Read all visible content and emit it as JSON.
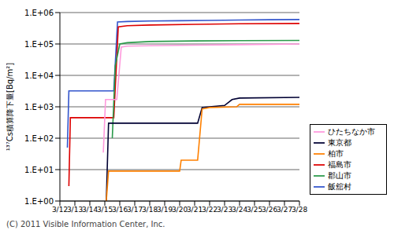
{
  "chart_data": {
    "type": "line",
    "y_label": "¹³⁷Cs積算降下量[Bq/m²]",
    "annotation": "(C) 2011 Visible Information Center, Inc.",
    "log": "y",
    "grid": true,
    "legend": "right",
    "xlim": [
      12,
      28
    ],
    "xticks": [
      {
        "value": 12,
        "label": "3/12"
      },
      {
        "value": 13,
        "label": "3/13"
      },
      {
        "value": 14,
        "label": "3/14"
      },
      {
        "value": 15,
        "label": "3/15"
      },
      {
        "value": 16,
        "label": "3/16"
      },
      {
        "value": 17,
        "label": "3/17"
      },
      {
        "value": 18,
        "label": "3/18"
      },
      {
        "value": 19,
        "label": "3/19"
      },
      {
        "value": 20,
        "label": "3/20"
      },
      {
        "value": 21,
        "label": "3/21"
      },
      {
        "value": 22,
        "label": "3/22"
      },
      {
        "value": 23,
        "label": "3/23"
      },
      {
        "value": 24,
        "label": "3/24"
      },
      {
        "value": 25,
        "label": "3/25"
      },
      {
        "value": 26,
        "label": "3/26"
      },
      {
        "value": 27,
        "label": "3/27"
      },
      {
        "value": 28,
        "label": "3/28"
      }
    ],
    "ylim": [
      1,
      1000000
    ],
    "yticks": [
      {
        "value": 1,
        "label": "1.E+00"
      },
      {
        "value": 10,
        "label": "1.E+01"
      },
      {
        "value": 100,
        "label": "1.E+02"
      },
      {
        "value": 1000,
        "label": "1.E+03"
      },
      {
        "value": 10000,
        "label": "1.E+04"
      },
      {
        "value": 100000,
        "label": "1.E+05"
      },
      {
        "value": 1000000,
        "label": "1.E+06"
      }
    ],
    "series": [
      {
        "name": "飯舘村",
        "color": "#3355cc",
        "x": [
          12.5,
          12.6,
          15.6,
          15.85,
          16.5,
          18,
          20,
          22,
          24,
          26,
          28
        ],
        "values": [
          50,
          3200,
          3200,
          500000,
          520000,
          540000,
          550000,
          560000,
          580000,
          590000,
          600000
        ]
      },
      {
        "name": "福島市",
        "color": "#dd0000",
        "x": [
          12.6,
          12.7,
          15.6,
          15.9,
          16.5,
          18,
          21,
          24,
          28
        ],
        "values": [
          3,
          450,
          450,
          350000,
          380000,
          400000,
          420000,
          440000,
          450000
        ]
      },
      {
        "name": "郡山市",
        "color": "#2a9a4a",
        "x": [
          15.5,
          15.7,
          16,
          16.5,
          18,
          21,
          24,
          28
        ],
        "values": [
          100,
          20000,
          100000,
          110000,
          120000,
          125000,
          128000,
          130000
        ]
      },
      {
        "name": "ひたちなか市",
        "color": "#ff99dd",
        "x": [
          14.9,
          15.05,
          15.8,
          16.1,
          16.5,
          18,
          21,
          24,
          28
        ],
        "values": [
          35,
          1700,
          1700,
          80000,
          85000,
          88000,
          92000,
          95000,
          100000
        ]
      },
      {
        "name": "東京都",
        "color": "#000033",
        "x": [
          15.1,
          15.25,
          21.2,
          21.5,
          22,
          23,
          23.5,
          24,
          28
        ],
        "values": [
          1,
          300,
          300,
          950,
          1000,
          1100,
          1700,
          1900,
          2000
        ]
      },
      {
        "name": "柏市",
        "color": "#ff8000",
        "x": [
          15.1,
          15.25,
          20,
          20.1,
          21.2,
          21.5,
          22,
          23.8,
          24,
          28
        ],
        "values": [
          1,
          9,
          9,
          20,
          20,
          850,
          950,
          1000,
          1200,
          1200
        ]
      }
    ]
  }
}
